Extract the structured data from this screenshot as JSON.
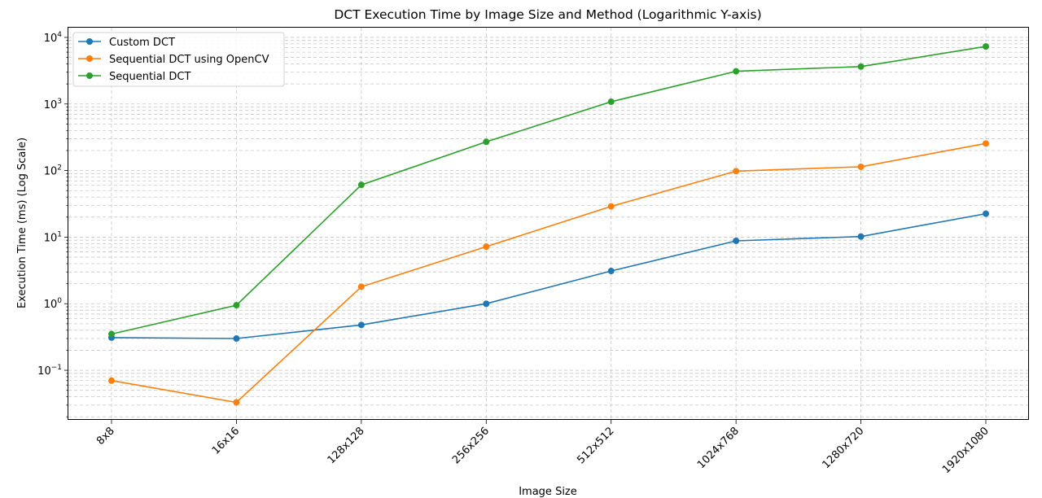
{
  "chart_data": {
    "type": "line",
    "title": "DCT Execution Time by Image Size and Method (Logarithmic Y-axis)",
    "xlabel": "Image Size",
    "ylabel": "Execution Time (ms) (Log Scale)",
    "yscale": "log",
    "ylim": [
      0.018,
      14000
    ],
    "grid": true,
    "legend_position": "top-left",
    "categories": [
      "8x8",
      "16x16",
      "128x128",
      "256x256",
      "512x512",
      "1024x768",
      "1280x720",
      "1920x1080"
    ],
    "series": [
      {
        "name": "Custom DCT",
        "color": "#1f77b4",
        "values": [
          0.31,
          0.3,
          0.48,
          1.0,
          3.1,
          8.8,
          10.2,
          22.5
        ]
      },
      {
        "name": "Sequential DCT using OpenCV",
        "color": "#ff7f0e",
        "values": [
          0.07,
          0.033,
          1.8,
          7.2,
          29,
          98,
          114,
          255
        ]
      },
      {
        "name": "Sequential DCT",
        "color": "#2ca02c",
        "values": [
          0.35,
          0.95,
          61,
          270,
          1080,
          3100,
          3650,
          7300
        ]
      }
    ],
    "yticks": [
      {
        "base": "10",
        "exp": "−1",
        "value": 0.1
      },
      {
        "base": "10",
        "exp": "0",
        "value": 1
      },
      {
        "base": "10",
        "exp": "1",
        "value": 10
      },
      {
        "base": "10",
        "exp": "2",
        "value": 100
      },
      {
        "base": "10",
        "exp": "3",
        "value": 1000
      },
      {
        "base": "10",
        "exp": "4",
        "value": 10000
      }
    ]
  }
}
